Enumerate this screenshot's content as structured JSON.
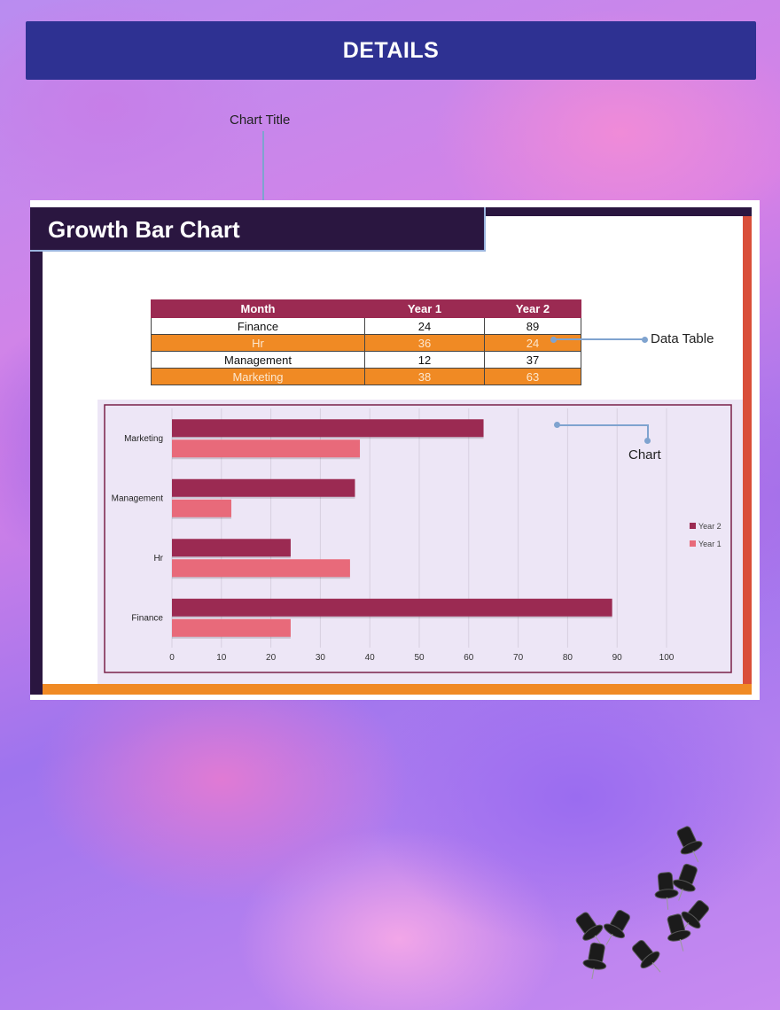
{
  "header": {
    "title": "DETAILS"
  },
  "callouts": {
    "chart_title": "Chart Title",
    "data_table": "Data Table",
    "chart": "Chart"
  },
  "colors": {
    "header": "#2e3192",
    "frame_dark": "#2a1640",
    "year2_bar": "#9b2a52",
    "year1_bar": "#e86a7a",
    "accent_orange": "#f08a24"
  },
  "card": {
    "title": "Growth Bar Chart"
  },
  "table": {
    "headers": [
      "Month",
      "Year 1",
      "Year 2"
    ],
    "rows": [
      [
        "Finance",
        "24",
        "89"
      ],
      [
        "Hr",
        "36",
        "24"
      ],
      [
        "Management",
        "12",
        "37"
      ],
      [
        "Marketing",
        "38",
        "63"
      ]
    ]
  },
  "chart_data": {
    "type": "bar",
    "orientation": "horizontal",
    "categories": [
      "Finance",
      "Hr",
      "Management",
      "Marketing"
    ],
    "series": [
      {
        "name": "Year 2",
        "values": [
          89,
          24,
          37,
          63
        ],
        "color": "#9b2a52"
      },
      {
        "name": "Year 1",
        "values": [
          24,
          36,
          12,
          38
        ],
        "color": "#e86a7a"
      }
    ],
    "xlim": [
      0,
      100
    ],
    "xticks": [
      0,
      10,
      20,
      30,
      40,
      50,
      60,
      70,
      80,
      90,
      100
    ],
    "grid": true,
    "legend": "right"
  }
}
